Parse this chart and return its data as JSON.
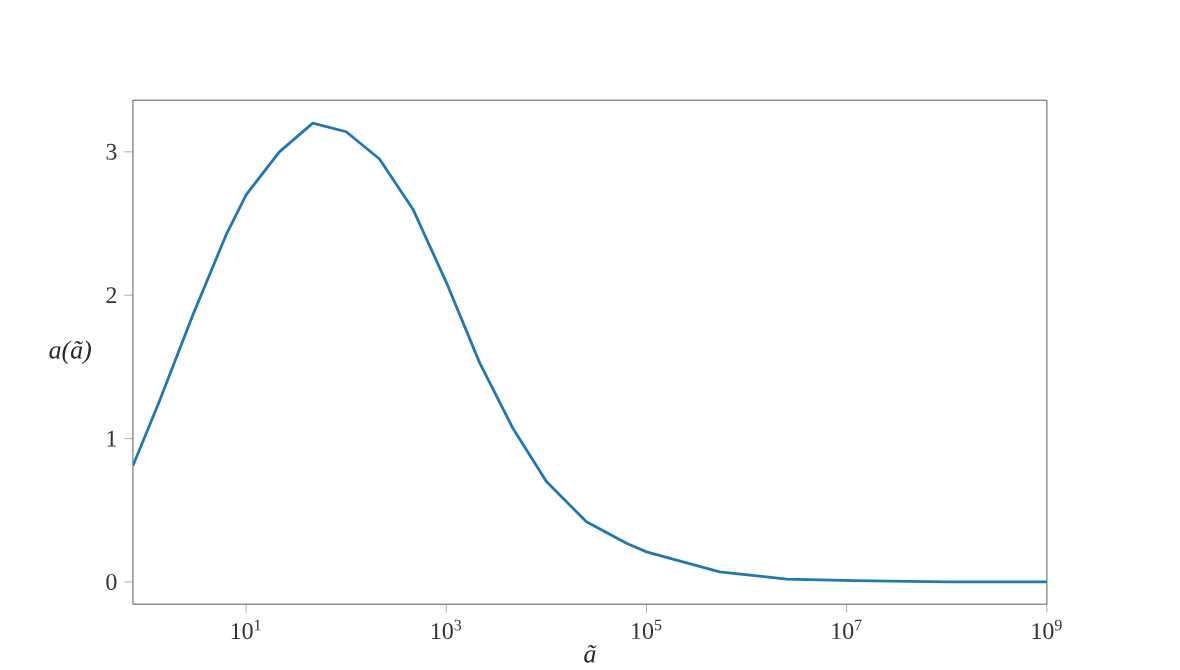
{
  "chart_data": {
    "type": "line",
    "xlabel": "ã",
    "ylabel": "a(ã)",
    "x": [
      0.74,
      1.36,
      2.93,
      6.31,
      10,
      21.5,
      46.4,
      100,
      215,
      464,
      1000,
      2150,
      4640,
      10000,
      25100,
      63100,
      100000,
      537000,
      2510000,
      11700000,
      100000000,
      1000000000
    ],
    "series": [
      {
        "color": "#1f77b4",
        "values": [
          0.81,
          1.26,
          1.86,
          2.42,
          2.7,
          3.0,
          3.2,
          3.14,
          2.95,
          2.6,
          2.09,
          1.53,
          1.07,
          0.7,
          0.42,
          0.27,
          0.21,
          0.07,
          0.02,
          0.01,
          0.0,
          0.0
        ]
      }
    ],
    "log": "x",
    "grid": false,
    "marker": "none",
    "line_style": "solid",
    "xlim": [
      0.74,
      1000000000
    ],
    "ylim": [
      -0.155,
      3.36
    ],
    "xticks": [
      {
        "value": 10,
        "label": "10$^{1}$"
      },
      {
        "value": 1000,
        "label": "10$^{3}$"
      },
      {
        "value": 100000,
        "label": "10$^{5}$"
      },
      {
        "value": 10000000,
        "label": "10$^{7}$"
      },
      {
        "value": 1000000000,
        "label": "10$^{9}$"
      }
    ],
    "yticks": [
      0,
      1,
      2,
      3
    ]
  }
}
